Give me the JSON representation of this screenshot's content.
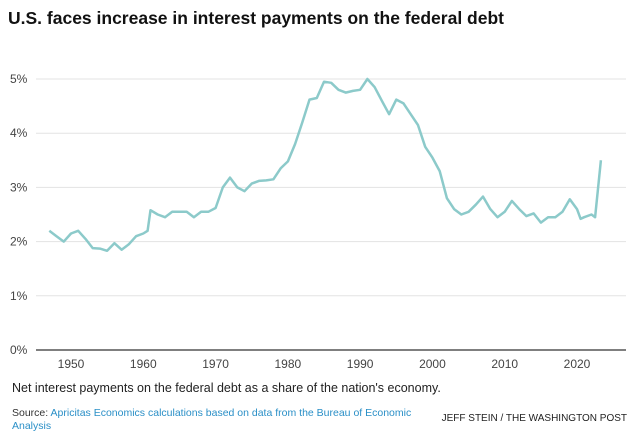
{
  "chart_data": {
    "type": "line",
    "title": "U.S. faces increase in interest payments on the federal debt",
    "xlabel": "",
    "ylabel": "",
    "xlim": [
      1946,
      2025
    ],
    "ylim": [
      0,
      5
    ],
    "grid": true,
    "x_ticks": [
      "1950",
      "1960",
      "1970",
      "1980",
      "1990",
      "2000",
      "2010",
      "2020"
    ],
    "x_tick_values": [
      1950,
      1960,
      1970,
      1980,
      1990,
      2000,
      2010,
      2020
    ],
    "y_ticks": [
      "0%",
      "1%",
      "2%",
      "3%",
      "4%",
      "5%"
    ],
    "y_tick_values": [
      0,
      1,
      2,
      3,
      4,
      5
    ],
    "line_color": "#8ccaca",
    "series": [
      {
        "name": "Net interest payments (% of GDP)",
        "x": [
          1947,
          1948,
          1949,
          1950,
          1951,
          1952,
          1953,
          1954,
          1955,
          1956,
          1957,
          1958,
          1959,
          1960,
          1960.6,
          1961,
          1962,
          1963,
          1964,
          1965,
          1966,
          1967,
          1968,
          1969,
          1970,
          1971,
          1972,
          1973,
          1974,
          1975,
          1976,
          1977,
          1978,
          1979,
          1980,
          1981,
          1982,
          1983,
          1984,
          1985,
          1986,
          1987,
          1988,
          1989,
          1990,
          1991,
          1992,
          1993,
          1994,
          1995,
          1996,
          1997,
          1998,
          1999,
          2000,
          2001,
          2002,
          2003,
          2004,
          2005,
          2006,
          2007,
          2008,
          2009,
          2010,
          2011,
          2012,
          2013,
          2014,
          2015,
          2016,
          2017,
          2018,
          2019,
          2020,
          2020.5,
          2021,
          2022,
          2022.5,
          2023.3
        ],
        "y": [
          2.2,
          2.1,
          2.0,
          2.15,
          2.2,
          2.05,
          1.88,
          1.87,
          1.83,
          1.97,
          1.85,
          1.95,
          2.1,
          2.15,
          2.2,
          2.58,
          2.5,
          2.45,
          2.55,
          2.55,
          2.55,
          2.45,
          2.55,
          2.55,
          2.62,
          3.0,
          3.18,
          3.0,
          2.93,
          3.07,
          3.12,
          3.13,
          3.15,
          3.35,
          3.48,
          3.8,
          4.2,
          4.62,
          4.65,
          4.95,
          4.93,
          4.8,
          4.75,
          4.78,
          4.8,
          5.0,
          4.85,
          4.6,
          4.35,
          4.62,
          4.55,
          4.35,
          4.15,
          3.75,
          3.55,
          3.3,
          2.8,
          2.6,
          2.5,
          2.55,
          2.68,
          2.83,
          2.6,
          2.45,
          2.55,
          2.75,
          2.6,
          2.47,
          2.52,
          2.35,
          2.45,
          2.45,
          2.55,
          2.78,
          2.6,
          2.42,
          2.45,
          2.5,
          2.45,
          3.5
        ]
      }
    ],
    "caption": "Net interest payments on the federal debt as a share of the nation's economy.",
    "source_label": "Source:",
    "source_text": "Apricitas Economics calculations based on data from the Bureau of Economic Analysis",
    "credit": "JEFF STEIN / THE WASHINGTON POST"
  }
}
